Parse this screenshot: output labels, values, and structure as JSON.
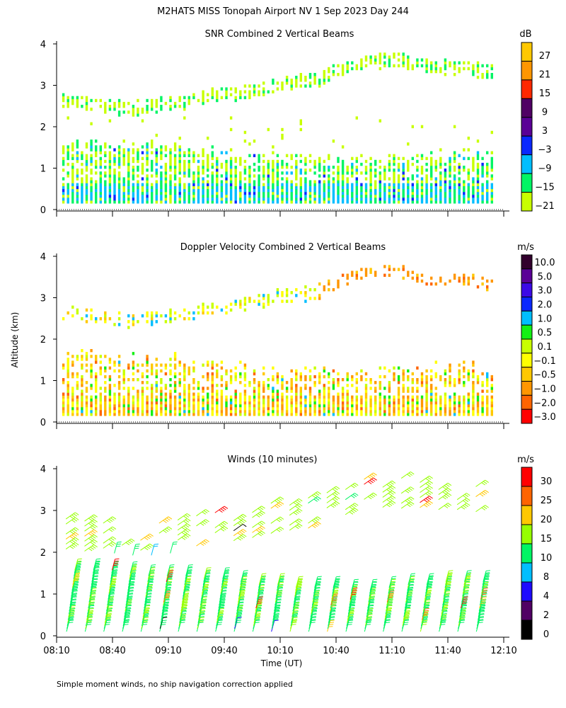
{
  "title": "M2HATS MISS Tonopah Airport NV   1 Sep 2023 Day 244",
  "footnote": "Simple moment winds, no ship navigation correction applied",
  "chart_data": [
    {
      "type": "heatmap",
      "title": "SNR Combined 2 Vertical Beams",
      "ylabel": "",
      "ylim": [
        0,
        4
      ],
      "yticks": [
        "0",
        "1",
        "2",
        "3",
        "4"
      ],
      "xlim": [
        "08:10",
        "12:10"
      ],
      "colorbar": {
        "unit": "dB",
        "labels": [
          "27",
          "21",
          "15",
          "9",
          "3",
          "−3",
          "−9",
          "−15",
          "−21"
        ],
        "colors": [
          "#ffc800",
          "#ff9600",
          "#ff2800",
          "#500064",
          "#5a0096",
          "#0a28ff",
          "#00beff",
          "#00f564",
          "#c8ff00"
        ]
      },
      "boundary_layer_top_km": [
        1.6,
        1.6,
        1.5,
        1.5,
        1.4,
        1.3,
        1.2,
        1.2,
        1.1,
        1.2,
        1.3,
        1.3,
        1.3
      ],
      "elevated_layer_km": [
        2.6,
        2.5,
        2.4,
        2.5,
        2.7,
        2.8,
        3.0,
        3.1,
        3.5,
        3.6,
        3.4,
        3.4,
        3.2
      ],
      "times": [
        "08:10",
        "08:30",
        "08:50",
        "09:10",
        "09:30",
        "09:50",
        "10:10",
        "10:30",
        "10:50",
        "11:10",
        "11:30",
        "11:50",
        "12:10"
      ]
    },
    {
      "type": "heatmap",
      "title": "Doppler Velocity Combined 2 Vertical Beams",
      "ylabel": "Altitude (km)",
      "ylim": [
        0,
        4
      ],
      "yticks": [
        "0",
        "1",
        "2",
        "3",
        "4"
      ],
      "xlim": [
        "08:10",
        "12:10"
      ],
      "colorbar": {
        "unit": "m/s",
        "labels": [
          "10.0",
          "5.0",
          "3.0",
          "2.0",
          "1.0",
          "0.5",
          "0.1",
          "−0.1",
          "−0.5",
          "−1.0",
          "−2.0",
          "−3.0"
        ],
        "colors": [
          "#32002d",
          "#5a0096",
          "#3c0ae6",
          "#0a28ff",
          "#00beff",
          "#14f014",
          "#c8ff00",
          "#ffff00",
          "#ffc800",
          "#ff9600",
          "#ff6400",
          "#ff0000"
        ]
      }
    },
    {
      "type": "barbs",
      "title": "Winds (10 minutes)",
      "xlabel": "Time (UT)",
      "ylim": [
        0,
        4
      ],
      "yticks": [
        "0",
        "1",
        "2",
        "3",
        "4"
      ],
      "xticks": [
        "08:10",
        "08:40",
        "09:10",
        "09:40",
        "10:10",
        "10:40",
        "11:10",
        "11:40",
        "12:10"
      ],
      "colorbar": {
        "unit": "m/s",
        "labels": [
          "30",
          "25",
          "20",
          "15",
          "10",
          "8",
          "4",
          "2",
          "0"
        ],
        "colors": [
          "#ff0000",
          "#ff6400",
          "#ffc800",
          "#96ff00",
          "#00f564",
          "#00beff",
          "#1e0aff",
          "#500064",
          "#000000"
        ]
      },
      "typical_speed_ms": {
        "below_2km": 12,
        "above_2km": 17
      }
    }
  ]
}
